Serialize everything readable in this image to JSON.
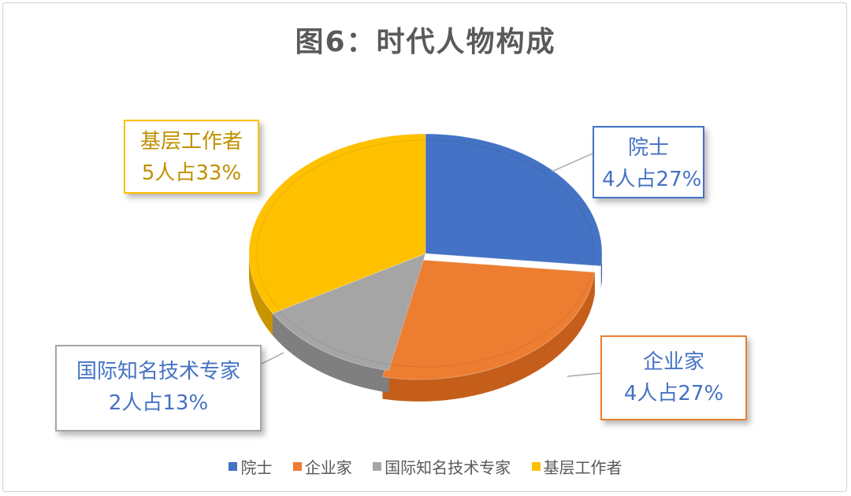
{
  "chart_data": {
    "type": "pie",
    "title": "图6：时代人物构成",
    "slices": [
      {
        "label": "院士",
        "value": 4,
        "percent": 27,
        "color": "#4472C4",
        "side": "#34589C",
        "text_color": "#4472C4",
        "callout_line1": "院士",
        "callout_line2": "4人占27%"
      },
      {
        "label": "企业家",
        "value": 4,
        "percent": 27,
        "color": "#ED7D31",
        "side": "#C55E1B",
        "text_color": "#4472C4",
        "callout_line1": "企业家",
        "callout_line2": "4人占27%"
      },
      {
        "label": "国际知名技术专家",
        "value": 2,
        "percent": 13,
        "color": "#A5A5A5",
        "side": "#7F7F7F",
        "text_color": "#4472C4",
        "callout_line1": "国际知名技术专家",
        "callout_line2": "2人占13%"
      },
      {
        "label": "基层工作者",
        "value": 5,
        "percent": 33,
        "color": "#FFC000",
        "side": "#C79500",
        "text_color": "#BF9000",
        "callout_line1": "基层工作者",
        "callout_line2": "5人占33%"
      }
    ],
    "legend_position": "bottom",
    "style": "3d-tilted"
  }
}
